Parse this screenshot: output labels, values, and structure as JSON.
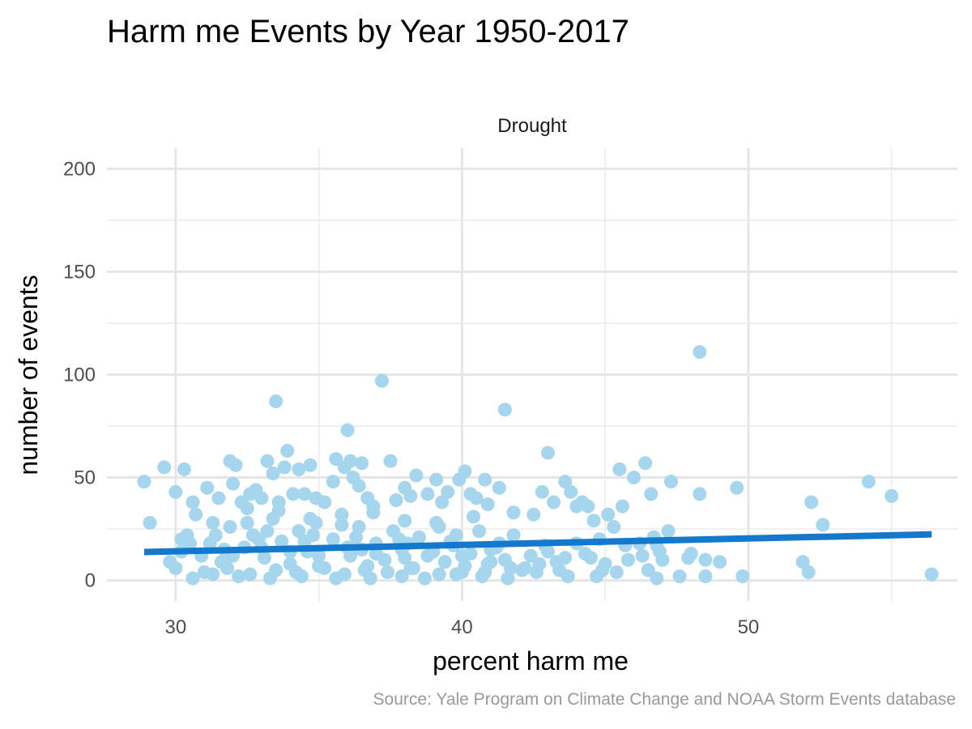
{
  "chart_data": {
    "type": "scatter",
    "title": "Harm me Events by Year 1950-2017",
    "facet": "Drought",
    "xlabel": "percent harm me",
    "ylabel": "number of events",
    "caption": "Source: Yale Program on Climate Change and NOAA Storm Events database",
    "xlim": [
      27.6,
      57.3
    ],
    "ylim": [
      -10,
      210
    ],
    "x_ticks": [
      30,
      40,
      50
    ],
    "x_tick_labels": [
      "30",
      "40",
      "50"
    ],
    "x_minor_ticks": [
      35,
      45,
      55
    ],
    "y_ticks": [
      0,
      50,
      100,
      150,
      200
    ],
    "y_tick_labels": [
      "0",
      "50",
      "100",
      "150",
      "200"
    ],
    "y_minor_ticks": [
      25,
      75,
      125,
      175
    ],
    "grid": true,
    "point_color": "#a6d5ee",
    "line_color": "#1478cc",
    "trend_line": {
      "x": [
        28.9,
        56.4
      ],
      "y": [
        13.8,
        22.4
      ]
    },
    "points": [
      [
        28.9,
        48
      ],
      [
        29.1,
        28
      ],
      [
        29.6,
        55
      ],
      [
        30.0,
        43
      ],
      [
        30.2,
        20
      ],
      [
        30.3,
        54
      ],
      [
        30.6,
        38
      ],
      [
        30.7,
        32
      ],
      [
        31.1,
        45
      ],
      [
        31.3,
        28
      ],
      [
        31.5,
        40
      ],
      [
        31.9,
        58
      ],
      [
        32.1,
        56
      ],
      [
        32.0,
        47
      ],
      [
        32.3,
        38
      ],
      [
        32.5,
        35
      ],
      [
        32.6,
        42
      ],
      [
        32.8,
        44
      ],
      [
        33.0,
        40
      ],
      [
        33.2,
        58
      ],
      [
        33.4,
        52
      ],
      [
        33.5,
        87
      ],
      [
        33.6,
        38
      ],
      [
        33.8,
        55
      ],
      [
        33.9,
        63
      ],
      [
        34.1,
        42
      ],
      [
        34.3,
        54
      ],
      [
        34.5,
        42
      ],
      [
        34.7,
        56
      ],
      [
        34.9,
        40
      ],
      [
        35.2,
        38
      ],
      [
        35.5,
        48
      ],
      [
        35.6,
        59
      ],
      [
        35.9,
        55
      ],
      [
        36.0,
        73
      ],
      [
        36.1,
        58
      ],
      [
        36.2,
        50
      ],
      [
        36.4,
        46
      ],
      [
        36.5,
        57
      ],
      [
        36.7,
        40
      ],
      [
        36.9,
        36
      ],
      [
        37.2,
        97
      ],
      [
        37.5,
        58
      ],
      [
        37.7,
        39
      ],
      [
        38.0,
        45
      ],
      [
        38.2,
        41
      ],
      [
        38.4,
        51
      ],
      [
        38.8,
        42
      ],
      [
        39.1,
        49
      ],
      [
        39.3,
        38
      ],
      [
        39.5,
        43
      ],
      [
        39.9,
        49
      ],
      [
        40.1,
        53
      ],
      [
        40.3,
        42
      ],
      [
        40.5,
        40
      ],
      [
        40.8,
        49
      ],
      [
        40.9,
        37
      ],
      [
        41.3,
        45
      ],
      [
        41.5,
        83
      ],
      [
        41.8,
        33
      ],
      [
        42.5,
        32
      ],
      [
        42.8,
        43
      ],
      [
        43.0,
        62
      ],
      [
        43.2,
        38
      ],
      [
        43.6,
        48
      ],
      [
        43.8,
        43
      ],
      [
        44.0,
        36
      ],
      [
        44.2,
        38
      ],
      [
        44.4,
        36
      ],
      [
        44.6,
        29
      ],
      [
        45.1,
        32
      ],
      [
        45.3,
        26
      ],
      [
        45.5,
        54
      ],
      [
        45.6,
        36
      ],
      [
        46.0,
        50
      ],
      [
        46.4,
        57
      ],
      [
        46.6,
        42
      ],
      [
        47.3,
        48
      ],
      [
        48.3,
        111
      ],
      [
        48.3,
        42
      ],
      [
        49.6,
        45
      ],
      [
        54.2,
        48
      ],
      [
        55.0,
        41
      ],
      [
        52.2,
        38
      ],
      [
        52.6,
        27
      ],
      [
        51.9,
        9
      ],
      [
        52.1,
        4
      ],
      [
        49.8,
        2
      ],
      [
        48.5,
        10
      ],
      [
        48.5,
        2
      ],
      [
        49.0,
        9
      ],
      [
        48.0,
        13
      ],
      [
        47.9,
        11
      ],
      [
        47.6,
        2
      ],
      [
        46.8,
        17
      ],
      [
        46.7,
        21
      ],
      [
        46.8,
        1
      ],
      [
        46.5,
        5
      ],
      [
        47.2,
        24
      ],
      [
        47.0,
        10
      ],
      [
        46.2,
        18
      ],
      [
        45.8,
        10
      ],
      [
        45.4,
        4
      ],
      [
        44.7,
        2
      ],
      [
        44.9,
        5
      ],
      [
        44.3,
        13
      ],
      [
        43.6,
        11
      ],
      [
        43.7,
        2
      ],
      [
        43.4,
        5
      ],
      [
        43.0,
        14
      ],
      [
        42.6,
        4
      ],
      [
        42.2,
        6
      ],
      [
        56.4,
        3
      ],
      [
        41.6,
        1
      ],
      [
        40.7,
        2
      ],
      [
        39.8,
        3
      ],
      [
        38.7,
        1
      ],
      [
        37.9,
        2
      ],
      [
        36.8,
        1
      ],
      [
        35.6,
        1
      ],
      [
        34.4,
        2
      ],
      [
        33.3,
        1
      ],
      [
        32.2,
        2
      ],
      [
        31.3,
        3
      ],
      [
        30.6,
        1
      ],
      [
        30.0,
        6
      ],
      [
        29.8,
        9
      ],
      [
        30.2,
        14
      ],
      [
        30.4,
        22
      ],
      [
        30.9,
        12
      ],
      [
        31.2,
        18
      ],
      [
        31.6,
        9
      ],
      [
        31.9,
        26
      ],
      [
        32.4,
        16
      ],
      [
        32.7,
        22
      ],
      [
        33.1,
        11
      ],
      [
        33.4,
        30
      ],
      [
        33.7,
        19
      ],
      [
        34.0,
        8
      ],
      [
        34.3,
        24
      ],
      [
        34.6,
        14
      ],
      [
        34.9,
        28
      ],
      [
        35.2,
        6
      ],
      [
        35.5,
        20
      ],
      [
        35.8,
        32
      ],
      [
        36.1,
        12
      ],
      [
        36.4,
        26
      ],
      [
        36.7,
        7
      ],
      [
        37.0,
        18
      ],
      [
        37.3,
        10
      ],
      [
        37.6,
        24
      ],
      [
        37.9,
        15
      ],
      [
        38.2,
        6
      ],
      [
        38.5,
        21
      ],
      [
        38.8,
        12
      ],
      [
        39.1,
        28
      ],
      [
        39.4,
        9
      ],
      [
        39.7,
        17
      ],
      [
        40.0,
        4
      ],
      [
        40.3,
        13
      ],
      [
        40.6,
        24
      ],
      [
        40.9,
        8
      ],
      [
        41.2,
        16
      ],
      [
        41.5,
        10
      ],
      [
        41.8,
        22
      ],
      [
        42.1,
        5
      ],
      [
        42.4,
        12
      ],
      [
        42.7,
        8
      ],
      [
        31.0,
        4
      ],
      [
        31.8,
        6
      ],
      [
        32.6,
        3
      ],
      [
        33.5,
        5
      ],
      [
        34.2,
        4
      ],
      [
        35.0,
        7
      ],
      [
        35.9,
        3
      ],
      [
        36.6,
        5
      ],
      [
        37.4,
        4
      ],
      [
        38.3,
        6
      ],
      [
        39.2,
        3
      ],
      [
        40.1,
        7
      ],
      [
        40.8,
        4
      ],
      [
        41.7,
        6
      ],
      [
        32.0,
        12
      ],
      [
        33.0,
        16
      ],
      [
        34.0,
        14
      ],
      [
        35.0,
        12
      ],
      [
        36.0,
        16
      ],
      [
        37.0,
        13
      ],
      [
        38.0,
        11
      ],
      [
        39.0,
        14
      ],
      [
        40.0,
        12
      ],
      [
        41.0,
        15
      ],
      [
        32.5,
        28
      ],
      [
        33.6,
        34
      ],
      [
        34.7,
        30
      ],
      [
        35.8,
        27
      ],
      [
        36.9,
        33
      ],
      [
        38.0,
        29
      ],
      [
        39.2,
        26
      ],
      [
        40.4,
        31
      ],
      [
        31.4,
        22
      ],
      [
        32.9,
        20
      ],
      [
        34.5,
        19
      ],
      [
        36.3,
        21
      ],
      [
        37.8,
        20
      ],
      [
        39.6,
        19
      ],
      [
        41.3,
        18
      ],
      [
        42.9,
        17
      ],
      [
        30.5,
        18
      ],
      [
        31.7,
        15
      ],
      [
        33.2,
        24
      ],
      [
        34.8,
        22
      ],
      [
        36.5,
        15
      ],
      [
        38.1,
        18
      ],
      [
        39.8,
        22
      ],
      [
        41.0,
        9
      ],
      [
        44.0,
        18
      ],
      [
        44.5,
        11
      ],
      [
        45.7,
        17
      ],
      [
        46.3,
        12
      ],
      [
        45.0,
        8
      ],
      [
        43.3,
        9
      ],
      [
        44.8,
        20
      ],
      [
        46.9,
        14
      ]
    ]
  }
}
